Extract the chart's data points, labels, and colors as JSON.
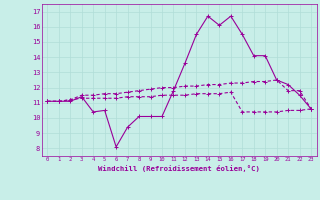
{
  "xlabel": "Windchill (Refroidissement éolien,°C)",
  "background_color": "#c8eee8",
  "grid_color": "#b0ddd8",
  "line_color": "#990099",
  "x": [
    0,
    1,
    2,
    3,
    4,
    5,
    6,
    7,
    8,
    9,
    10,
    11,
    12,
    13,
    14,
    15,
    16,
    17,
    18,
    19,
    20,
    21,
    22,
    23
  ],
  "y_main": [
    11.1,
    11.1,
    11.1,
    11.4,
    10.4,
    10.5,
    8.1,
    9.4,
    10.1,
    10.1,
    10.1,
    11.8,
    13.6,
    15.5,
    16.7,
    16.1,
    16.7,
    15.5,
    14.1,
    14.1,
    12.5,
    12.2,
    11.5,
    10.6
  ],
  "y_upper": [
    11.1,
    11.1,
    11.2,
    11.5,
    11.5,
    11.6,
    11.6,
    11.7,
    11.8,
    11.9,
    12.0,
    12.0,
    12.1,
    12.1,
    12.2,
    12.2,
    12.3,
    12.3,
    12.4,
    12.4,
    12.5,
    11.8,
    11.8,
    10.6
  ],
  "y_lower": [
    11.1,
    11.1,
    11.2,
    11.3,
    11.3,
    11.3,
    11.3,
    11.4,
    11.4,
    11.4,
    11.5,
    11.5,
    11.5,
    11.6,
    11.6,
    11.6,
    11.7,
    10.4,
    10.4,
    10.4,
    10.4,
    10.5,
    10.5,
    10.6
  ],
  "ylim": [
    7.5,
    17.5
  ],
  "xlim": [
    -0.5,
    23.5
  ],
  "yticks": [
    8,
    9,
    10,
    11,
    12,
    13,
    14,
    15,
    16,
    17
  ],
  "xticks": [
    0,
    1,
    2,
    3,
    4,
    5,
    6,
    7,
    8,
    9,
    10,
    11,
    12,
    13,
    14,
    15,
    16,
    17,
    18,
    19,
    20,
    21,
    22,
    23
  ]
}
